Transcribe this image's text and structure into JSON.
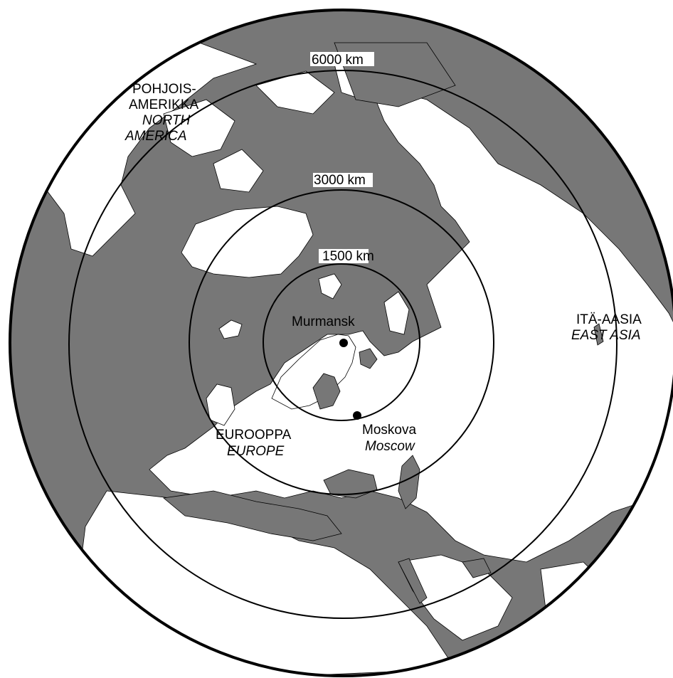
{
  "map": {
    "ring_labels": {
      "r1500": "1500 km",
      "r3000": "3000 km",
      "r6000": "6000 km"
    },
    "regions": {
      "north_america": {
        "fi_line1": "POHJOIS-",
        "fi_line2": "AMERIKKA",
        "en_line1": "NORTH",
        "en_line2": "AMERICA"
      },
      "europe": {
        "fi": "EUROOPPA",
        "en": "EUROPE"
      },
      "east_asia": {
        "fi": "ITÄ-AASIA",
        "en": "EAST ASIA"
      }
    },
    "cities": {
      "murmansk": {
        "name": "Murmansk"
      },
      "moscow": {
        "fi": "Moskova",
        "en": "Moscow"
      }
    },
    "colors": {
      "sea": "#777777",
      "land": "#ffffff",
      "outline": "#000000"
    }
  }
}
